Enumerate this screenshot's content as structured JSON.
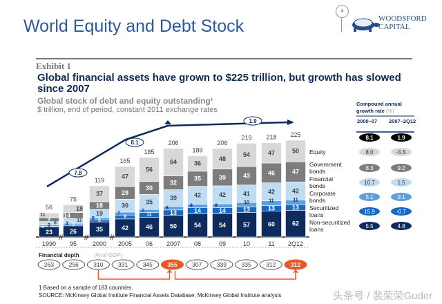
{
  "page": {
    "title": "World Equity and Debt Stock",
    "slide_number": "4",
    "logo": "WOODSFORD CAPITAL",
    "logo_line1": "WOODSFORD",
    "logo_line2": "CAPITAL",
    "watermark": "头条号 / 裴荣荣Guder"
  },
  "colors": {
    "non_securitized": "#0e2b5e",
    "securitized": "#1769c2",
    "corporate": "#5f9ee0",
    "financial": "#bfdcf3",
    "government": "#7d7d7d",
    "equity": "#d8d8d8",
    "accent": "#e8592a",
    "title": "#2f5a9a"
  },
  "chart_data": {
    "type": "bar",
    "stacked": true,
    "exhibit": "Exhibit 1",
    "title": "Global financial assets have grown to $225 trillion, but growth has slowed since 2007",
    "subtitle": "Global stock of debt and equity outstanding¹",
    "ylabel": "$ trillion, end of period, constant 2011 exchange rates",
    "categories": [
      "1990",
      "95",
      "2000",
      "2005",
      "06",
      "2007",
      "08",
      "09",
      "10",
      "11",
      "2Q12"
    ],
    "totals": [
      56,
      75,
      119,
      165,
      185,
      206,
      189,
      206,
      219,
      218,
      225
    ],
    "series": [
      {
        "name": "Non-securitized loans",
        "key": "non_securitized",
        "values": [
          23,
          26,
          35,
          42,
          46,
          50,
          54,
          54,
          57,
          60,
          62
        ]
      },
      {
        "name": "Securitized loans",
        "key": "securitized",
        "values": [
          2,
          3,
          5,
          9,
          11,
          13,
          14,
          14,
          13,
          13,
          13
        ]
      },
      {
        "name": "Corporate bonds",
        "key": "corporate",
        "values": [
          3,
          3,
          5,
          7,
          7,
          8,
          8,
          9,
          10,
          11,
          11
        ]
      },
      {
        "name": "Financial bonds",
        "key": "financial",
        "values": [
          8,
          11,
          19,
          30,
          35,
          39,
          42,
          42,
          41,
          42,
          42
        ]
      },
      {
        "name": "Government bonds",
        "key": "government",
        "values": [
          9,
          14,
          18,
          29,
          30,
          32,
          35,
          39,
          43,
          46,
          47
        ]
      },
      {
        "name": "Equity",
        "key": "equity",
        "values": [
          11,
          18,
          37,
          47,
          56,
          64,
          36,
          48,
          54,
          47,
          50
        ]
      }
    ],
    "trend_labels": [
      "7.8",
      "8.1",
      "1.9"
    ],
    "cagr": {
      "header": "Compound annual",
      "header2": "growth rate",
      "unit": "(%)",
      "col1": "2000–07",
      "col2": "2007–2Q12",
      "rows": [
        {
          "label": "Total",
          "a": "8.1",
          "b": "1.9"
        },
        {
          "label": "Equity",
          "a": "8.0",
          "b": "-5.5"
        },
        {
          "label": "Government bonds",
          "a": "8.3",
          "b": "9.2"
        },
        {
          "label": "Financial bonds",
          "a": "10.7",
          "b": "1.5"
        },
        {
          "label": "Corporate bonds",
          "a": "5.1",
          "b": "9.1"
        },
        {
          "label": "Securitized loans",
          "a": "15.9",
          "b": "-0.7"
        },
        {
          "label": "Non-securitized loans",
          "a": "5.5",
          "b": "4.8"
        }
      ]
    },
    "financial_depth": {
      "label": "Financial depth",
      "unit": "(% of GDP)",
      "values": [
        263,
        256,
        310,
        331,
        345,
        355,
        307,
        339,
        335,
        312,
        312
      ],
      "highlight": [
        5,
        10
      ]
    }
  },
  "footnotes": {
    "note1": "1  Based on a sample of 183 countries.",
    "source": "SOURCE: McKinsey Global Institute Financial Assets Database; McKinsey Global Institute analysis"
  }
}
